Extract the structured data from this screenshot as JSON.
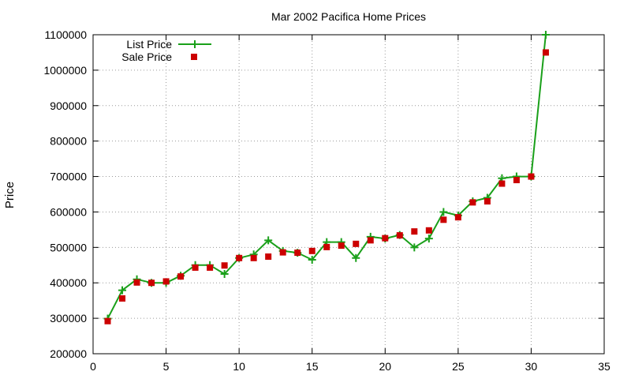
{
  "chart_data": {
    "type": "line",
    "title": "Mar 2002 Pacifica Home Prices",
    "xlabel": "",
    "ylabel": "Price",
    "xlim": [
      0,
      35
    ],
    "ylim": [
      200000,
      1100000
    ],
    "xticks": [
      0,
      5,
      10,
      15,
      20,
      25,
      30,
      35
    ],
    "yticks": [
      200000,
      300000,
      400000,
      500000,
      600000,
      700000,
      800000,
      900000,
      1000000,
      1100000
    ],
    "grid": true,
    "legend_position": "top-left",
    "series": [
      {
        "name": "List Price",
        "style": "linespoints",
        "marker": "plus",
        "color": "#1aa01a",
        "x": [
          1,
          2,
          3,
          4,
          5,
          6,
          7,
          8,
          9,
          10,
          11,
          12,
          13,
          14,
          15,
          16,
          17,
          18,
          19,
          20,
          21,
          22,
          23,
          24,
          25,
          26,
          27,
          28,
          29,
          30,
          31
        ],
        "y": [
          299000,
          379000,
          410000,
          400000,
          400000,
          420000,
          450000,
          450000,
          425000,
          470000,
          480000,
          520000,
          490000,
          485000,
          465000,
          515000,
          515000,
          470000,
          530000,
          525000,
          535000,
          500000,
          525000,
          600000,
          590000,
          630000,
          640000,
          695000,
          700000,
          700000,
          1100000
        ]
      },
      {
        "name": "Sale Price",
        "style": "points",
        "marker": "square",
        "color": "#cc0000",
        "x": [
          1,
          2,
          3,
          4,
          5,
          6,
          7,
          8,
          9,
          10,
          11,
          12,
          13,
          14,
          15,
          16,
          17,
          18,
          19,
          20,
          21,
          22,
          23,
          24,
          25,
          26,
          27,
          28,
          29,
          30,
          31
        ],
        "y": [
          292000,
          356000,
          401000,
          400000,
          404000,
          418000,
          443000,
          443000,
          449000,
          470000,
          470000,
          474000,
          486000,
          485000,
          490000,
          501000,
          505000,
          510000,
          520000,
          526000,
          534000,
          545000,
          548000,
          578000,
          585000,
          627000,
          630000,
          680000,
          690000,
          700000,
          1050000
        ]
      }
    ]
  }
}
